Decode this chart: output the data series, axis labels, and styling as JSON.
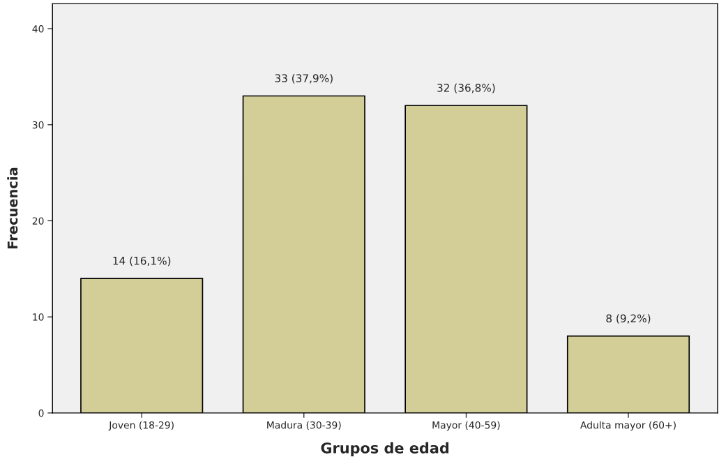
{
  "chart_data": {
    "type": "bar",
    "xlabel": "Grupos de edad",
    "ylabel": "Frecuencia",
    "categories": [
      "Joven (18-29)",
      "Madura (30-39)",
      "Mayor (40-59)",
      "Adulta mayor (60+)"
    ],
    "values": [
      14,
      33,
      32,
      8
    ],
    "value_labels": [
      "14 (16,1%)",
      "33 (37,9%)",
      "32 (36,8%)",
      "8 (9,2%)"
    ],
    "color": "#d3ce97",
    "ylim": [
      0,
      42.6
    ],
    "yticks": [
      0,
      10,
      20,
      30,
      40
    ],
    "grid": false,
    "legend": false
  }
}
